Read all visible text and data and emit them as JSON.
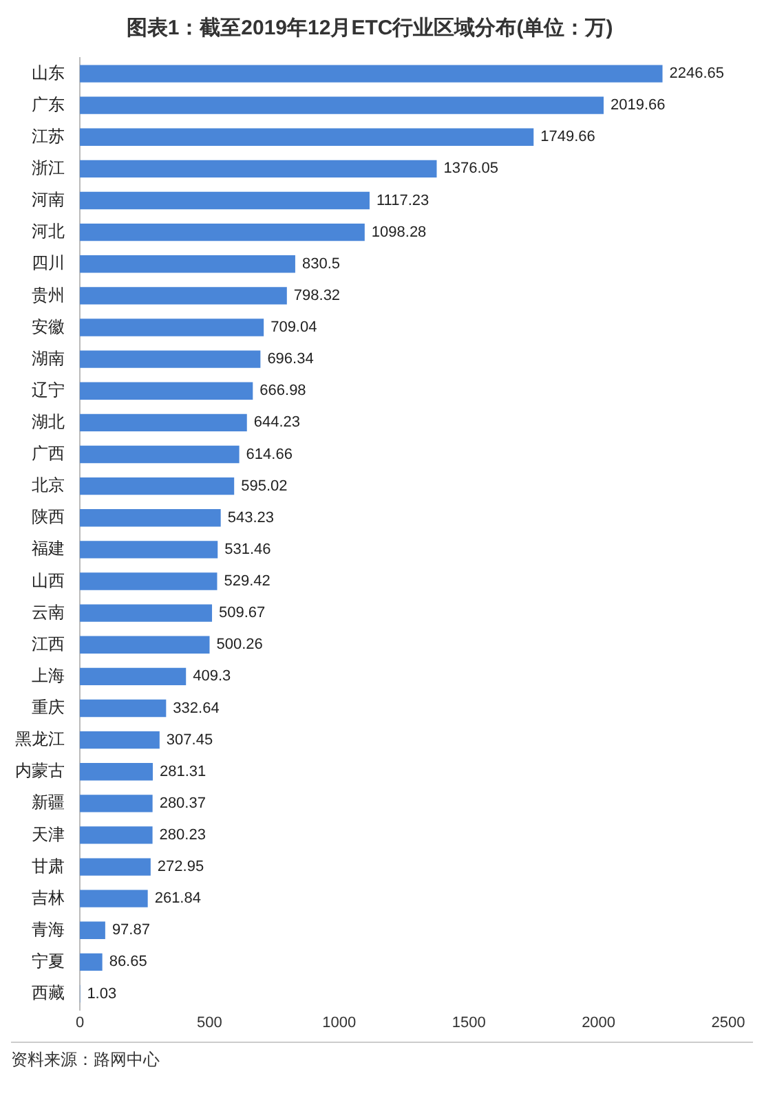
{
  "chart_data": {
    "type": "bar",
    "orientation": "horizontal",
    "title": "图表1：截至2019年12月ETC行业区域分布(单位：万)",
    "categories": [
      "山东",
      "广东",
      "江苏",
      "浙江",
      "河南",
      "河北",
      "四川",
      "贵州",
      "安徽",
      "湖南",
      "辽宁",
      "湖北",
      "广西",
      "北京",
      "陕西",
      "福建",
      "山西",
      "云南",
      "江西",
      "上海",
      "重庆",
      "黑龙江",
      "内蒙古",
      "新疆",
      "天津",
      "甘肃",
      "吉林",
      "青海",
      "宁夏",
      "西藏"
    ],
    "values": [
      2246.65,
      2019.66,
      1749.66,
      1376.05,
      1117.23,
      1098.28,
      830.5,
      798.32,
      709.04,
      696.34,
      666.98,
      644.23,
      614.66,
      595.02,
      543.23,
      531.46,
      529.42,
      509.67,
      500.26,
      409.3,
      332.64,
      307.45,
      281.31,
      280.37,
      280.23,
      272.95,
      261.84,
      97.87,
      86.65,
      1.03
    ],
    "color": "#4a86d8",
    "xlim": [
      0,
      2500
    ],
    "xticks": [
      0,
      500,
      1000,
      1500,
      2000,
      2500
    ],
    "grid": false,
    "legend": false,
    "data_labels": true,
    "annotations": [
      "资料来源：路网中心"
    ]
  }
}
